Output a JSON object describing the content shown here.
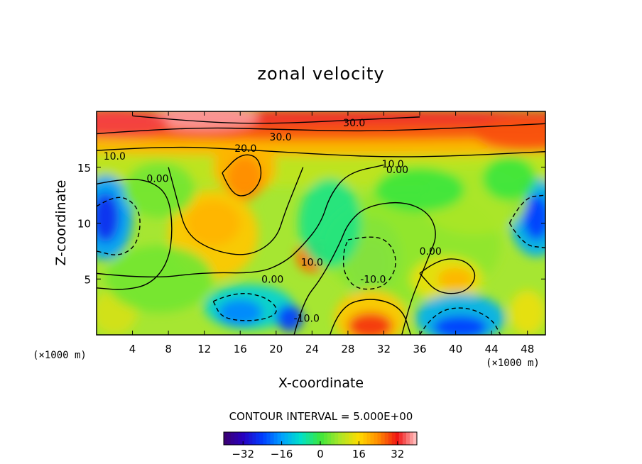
{
  "chart_data": {
    "type": "heatmap",
    "title": "zonal velocity",
    "xlabel": "X-coordinate",
    "ylabel": "Z-coordinate",
    "x_unit": "(×1000 m)",
    "y_unit": "(×1000 m)",
    "xlim": [
      0,
      50
    ],
    "ylim": [
      0,
      20
    ],
    "x_ticks": [
      "4",
      "8",
      "12",
      "16",
      "20",
      "24",
      "28",
      "32",
      "36",
      "40",
      "44",
      "48"
    ],
    "y_ticks": [
      "5",
      "10",
      "15"
    ],
    "contour_interval_label": "CONTOUR INTERVAL = 5.000E+00",
    "contour_interval": 5.0,
    "colorbar": {
      "min": -40,
      "max": 40,
      "ticks": [
        "−32",
        "−16",
        "0",
        "16",
        "32"
      ],
      "tick_values": [
        -32,
        -16,
        0,
        16,
        32
      ]
    },
    "contour_labels": [
      {
        "text": "30.0",
        "x": 28.7,
        "z": 19.0
      },
      {
        "text": "30.0",
        "x": 20.5,
        "z": 17.7
      },
      {
        "text": "20.0",
        "x": 16.6,
        "z": 16.7
      },
      {
        "text": "10.0",
        "x": 2.0,
        "z": 16.0
      },
      {
        "text": "10.0",
        "x": 33.0,
        "z": 15.3
      },
      {
        "text": "0.00",
        "x": 33.5,
        "z": 14.8
      },
      {
        "text": "0.00",
        "x": 6.8,
        "z": 14.0
      },
      {
        "text": "10.0",
        "x": 24.0,
        "z": 6.5
      },
      {
        "text": "0.00",
        "x": 37.2,
        "z": 7.5
      },
      {
        "text": "0.00",
        "x": 19.6,
        "z": 5.0
      },
      {
        "text": "-10.0",
        "x": 30.8,
        "z": 5.0
      },
      {
        "text": "-10.0",
        "x": 23.4,
        "z": 1.5
      }
    ],
    "grid": false
  }
}
